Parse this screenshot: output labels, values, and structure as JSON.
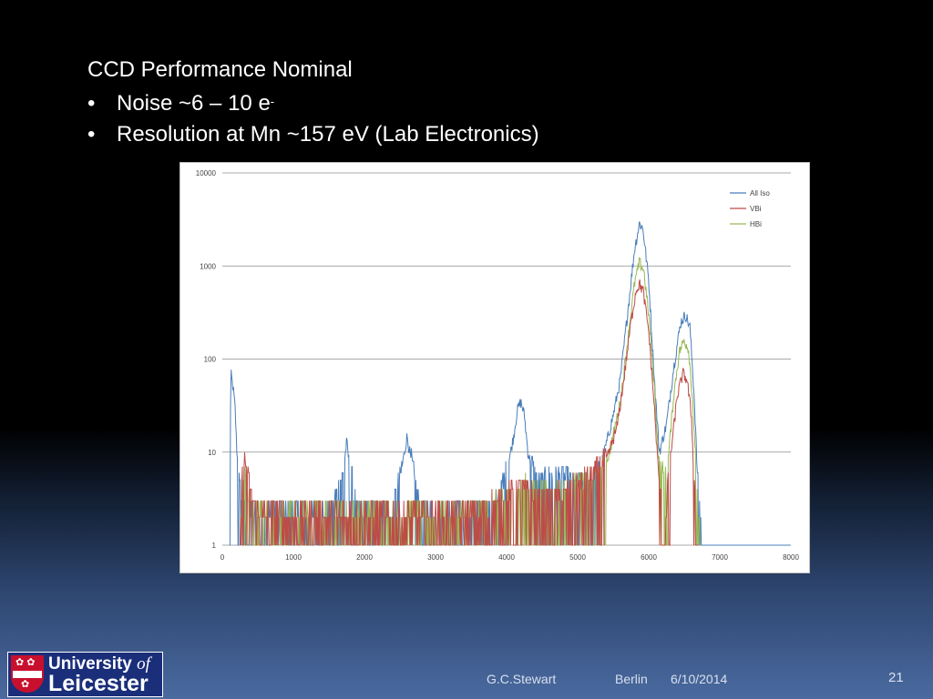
{
  "slide": {
    "title": "CCD Performance Nominal",
    "bullets": [
      {
        "text": "Noise  ~6 – 10 e",
        "sup": "-"
      },
      {
        "text": "Resolution at Mn ~157 eV (Lab Electronics)",
        "sup": ""
      }
    ]
  },
  "footer": {
    "author": "G.C.Stewart",
    "location": "Berlin",
    "date": "6/10/2014",
    "page": "21"
  },
  "logo": {
    "line1_a": "University",
    "line1_b": "of",
    "line2": "Leicester"
  },
  "colors": {
    "all_iso": "#4a7ebb",
    "vbi": "#be4b48",
    "hbi": "#98b954"
  },
  "chart_data": {
    "type": "line",
    "title": "",
    "xlabel": "",
    "ylabel": "",
    "xlim": [
      0,
      8000
    ],
    "ylim": [
      1,
      10000
    ],
    "yscale": "log",
    "x_ticks": [
      "0",
      "1000",
      "2000",
      "3000",
      "4000",
      "5000",
      "6000",
      "7000",
      "8000"
    ],
    "y_ticks": [
      "1",
      "10",
      "100",
      "1000",
      "10000"
    ],
    "y_tick_values": [
      1,
      10,
      100,
      1000,
      10000
    ],
    "gridlines": "horizontal",
    "legend_position": "top-right",
    "series": [
      {
        "name": "All Iso",
        "color": "#4a7ebb",
        "points": [
          [
            100,
            1
          ],
          [
            120,
            70
          ],
          [
            150,
            50
          ],
          [
            180,
            30
          ],
          [
            200,
            12
          ],
          [
            230,
            5
          ],
          [
            260,
            3
          ],
          [
            300,
            2
          ],
          [
            350,
            3
          ],
          [
            400,
            2
          ],
          [
            500,
            2
          ],
          [
            600,
            2
          ],
          [
            700,
            2
          ],
          [
            800,
            2
          ],
          [
            900,
            2
          ],
          [
            1000,
            2
          ],
          [
            1100,
            2
          ],
          [
            1200,
            2
          ],
          [
            1300,
            2
          ],
          [
            1400,
            2
          ],
          [
            1500,
            2
          ],
          [
            1600,
            3
          ],
          [
            1700,
            6
          ],
          [
            1750,
            13
          ],
          [
            1800,
            6
          ],
          [
            1900,
            2
          ],
          [
            2000,
            2
          ],
          [
            2200,
            2
          ],
          [
            2400,
            2
          ],
          [
            2500,
            5
          ],
          [
            2600,
            15
          ],
          [
            2700,
            5
          ],
          [
            2800,
            2
          ],
          [
            3000,
            2
          ],
          [
            3200,
            2
          ],
          [
            3400,
            2
          ],
          [
            3600,
            2
          ],
          [
            3800,
            2
          ],
          [
            3900,
            3
          ],
          [
            4000,
            6
          ],
          [
            4100,
            15
          ],
          [
            4150,
            28
          ],
          [
            4200,
            35
          ],
          [
            4250,
            25
          ],
          [
            4300,
            10
          ],
          [
            4400,
            5
          ],
          [
            4500,
            4
          ],
          [
            4600,
            5
          ],
          [
            4800,
            5
          ],
          [
            5000,
            4
          ],
          [
            5200,
            4
          ],
          [
            5300,
            6
          ],
          [
            5400,
            12
          ],
          [
            5500,
            25
          ],
          [
            5600,
            60
          ],
          [
            5700,
            300
          ],
          [
            5800,
            1500
          ],
          [
            5870,
            2900
          ],
          [
            5920,
            2500
          ],
          [
            6000,
            700
          ],
          [
            6080,
            60
          ],
          [
            6150,
            10
          ],
          [
            6250,
            20
          ],
          [
            6350,
            80
          ],
          [
            6450,
            250
          ],
          [
            6520,
            300
          ],
          [
            6580,
            220
          ],
          [
            6640,
            40
          ],
          [
            6700,
            3
          ],
          [
            6760,
            1
          ],
          [
            7000,
            1
          ],
          [
            7500,
            1
          ],
          [
            8000,
            1
          ]
        ]
      },
      {
        "name": "VBi",
        "color": "#be4b48",
        "points": [
          [
            250,
            1
          ],
          [
            280,
            5
          ],
          [
            320,
            8
          ],
          [
            360,
            5
          ],
          [
            420,
            3
          ],
          [
            500,
            2
          ],
          [
            700,
            2
          ],
          [
            900,
            2
          ],
          [
            1100,
            2
          ],
          [
            1400,
            2
          ],
          [
            1700,
            2
          ],
          [
            2000,
            2
          ],
          [
            2500,
            2
          ],
          [
            3000,
            2
          ],
          [
            3500,
            2
          ],
          [
            4000,
            3
          ],
          [
            4200,
            4
          ],
          [
            4400,
            3
          ],
          [
            4700,
            3
          ],
          [
            5000,
            4
          ],
          [
            5200,
            5
          ],
          [
            5400,
            8
          ],
          [
            5550,
            18
          ],
          [
            5650,
            60
          ],
          [
            5750,
            250
          ],
          [
            5820,
            550
          ],
          [
            5870,
            640
          ],
          [
            5920,
            550
          ],
          [
            6000,
            200
          ],
          [
            6080,
            30
          ],
          [
            6150,
            4
          ],
          [
            6220,
            1
          ],
          [
            6300,
            8
          ],
          [
            6400,
            40
          ],
          [
            6480,
            70
          ],
          [
            6540,
            60
          ],
          [
            6600,
            25
          ],
          [
            6660,
            2
          ],
          [
            6700,
            1
          ]
        ]
      },
      {
        "name": "HBi",
        "color": "#98b954",
        "points": [
          [
            250,
            1
          ],
          [
            280,
            3
          ],
          [
            320,
            5
          ],
          [
            360,
            3
          ],
          [
            420,
            2
          ],
          [
            500,
            2
          ],
          [
            800,
            2
          ],
          [
            1200,
            2
          ],
          [
            1600,
            2
          ],
          [
            2000,
            2
          ],
          [
            2500,
            2
          ],
          [
            3000,
            2
          ],
          [
            3500,
            2
          ],
          [
            4000,
            3
          ],
          [
            4300,
            4
          ],
          [
            4600,
            3
          ],
          [
            5000,
            4
          ],
          [
            5300,
            5
          ],
          [
            5450,
            10
          ],
          [
            5600,
            35
          ],
          [
            5700,
            150
          ],
          [
            5800,
            650
          ],
          [
            5870,
            1100
          ],
          [
            5930,
            900
          ],
          [
            6000,
            300
          ],
          [
            6080,
            50
          ],
          [
            6150,
            6
          ],
          [
            6250,
            5
          ],
          [
            6350,
            40
          ],
          [
            6430,
            120
          ],
          [
            6500,
            160
          ],
          [
            6560,
            130
          ],
          [
            6620,
            35
          ],
          [
            6680,
            3
          ],
          [
            6730,
            1
          ]
        ]
      }
    ]
  }
}
